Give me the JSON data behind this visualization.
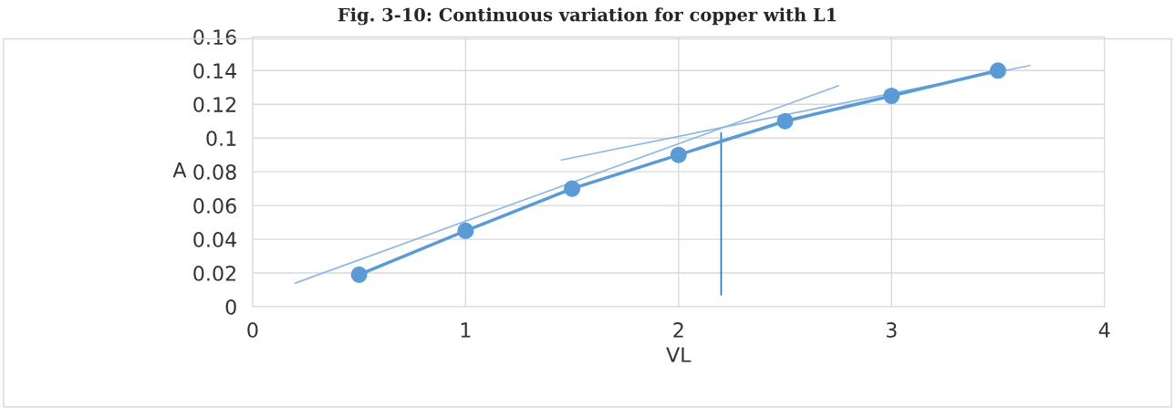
{
  "chart_data": {
    "type": "line",
    "title": "Fig. 3-10: Continuous variation for copper with L1",
    "xlabel": "VL",
    "ylabel": "A",
    "xlim": [
      0,
      4
    ],
    "xticks": [
      0,
      1,
      2,
      3,
      4
    ],
    "ylim": [
      0,
      0.16
    ],
    "yticks": [
      0,
      0.02,
      0.04,
      0.06,
      0.08,
      0.1,
      0.12,
      0.14,
      0.16
    ],
    "grid": true,
    "marker": "circle",
    "line_style": "solid",
    "series": [
      {
        "x": [
          0.5,
          1,
          1.5,
          2,
          2.5,
          3,
          3.5
        ],
        "values": [
          0.019,
          0.045,
          0.07,
          0.09,
          0.11,
          0.125,
          0.14
        ],
        "color": "#5b9bd5"
      },
      {
        "x": [
          0.2,
          2.75
        ],
        "values": [
          0.014,
          0.131
        ],
        "color": "#8db8e3",
        "marker": "none"
      },
      {
        "x": [
          1.45,
          3.65
        ],
        "values": [
          0.087,
          0.143
        ],
        "color": "#8db8e3",
        "marker": "none"
      },
      {
        "x": [
          2.2,
          2.2
        ],
        "values": [
          0.007,
          0.103
        ],
        "color": "#2e75b6",
        "marker": "none"
      }
    ]
  }
}
